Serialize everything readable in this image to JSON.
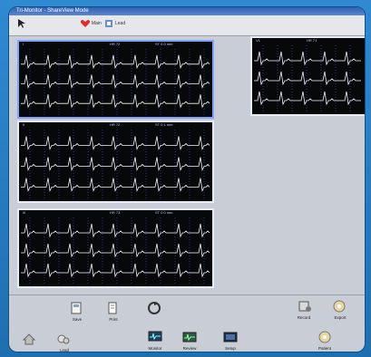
{
  "window": {
    "title": "Tri-Monitor - ShareView Mode",
    "toolbar": [
      {
        "label": "",
        "icon": "cursor-icon"
      },
      {
        "label": "Main",
        "icon": "heart-icon"
      },
      {
        "label": "Lead",
        "icon": "lead-icon"
      }
    ]
  },
  "panels": [
    {
      "id": "A",
      "header": [
        "I",
        "HR 72",
        "ST 0.0 mm"
      ],
      "traces": 3
    },
    {
      "id": "B",
      "header": [
        "II",
        "HR 72",
        "ST 0.1 mm"
      ],
      "traces": 3
    },
    {
      "id": "C",
      "header": [
        "III",
        "HR 73",
        "ST 0.0 mm"
      ],
      "traces": 3
    },
    {
      "id": "D",
      "header": [
        "V1",
        "HR 71",
        "ST 0.2 mm"
      ],
      "traces": 3
    }
  ],
  "dock_row1": [
    {
      "label": "Save",
      "icon": "save-icon"
    },
    {
      "label": "Print",
      "icon": "print-icon"
    },
    {
      "label": "",
      "icon": "refresh-icon"
    },
    {
      "label": "Record",
      "icon": "record-icon"
    },
    {
      "label": "Export",
      "icon": "export-icon"
    }
  ],
  "dock_row2": [
    {
      "label": "",
      "icon": "home-icon"
    },
    {
      "label": "Lead",
      "icon": "lead2-icon"
    },
    {
      "label": "Monitor",
      "icon": "monitor-icon"
    },
    {
      "label": "Review",
      "icon": "review-icon"
    },
    {
      "label": "Setup",
      "icon": "setup-icon"
    },
    {
      "label": "Patient",
      "icon": "patient-icon"
    }
  ],
  "colors": {
    "trace": "#f3f6ff",
    "grid": "#2a3a72",
    "accent": "#ff3a3a"
  }
}
